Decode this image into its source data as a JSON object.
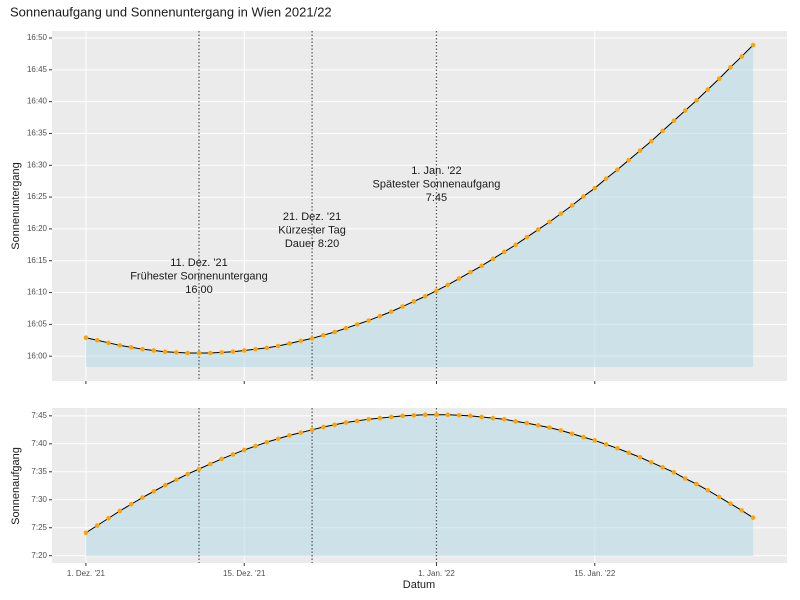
{
  "chart_data": [
    {
      "type": "line",
      "title": "Sonnenaufgang und Sonnenuntergang in Wien 2021/22",
      "ylabel": "Sonnenuntergang",
      "x": [
        "2021-12-01",
        "2021-12-02",
        "2021-12-03",
        "2021-12-04",
        "2021-12-05",
        "2021-12-06",
        "2021-12-07",
        "2021-12-08",
        "2021-12-09",
        "2021-12-10",
        "2021-12-11",
        "2021-12-12",
        "2021-12-13",
        "2021-12-14",
        "2021-12-15",
        "2021-12-16",
        "2021-12-17",
        "2021-12-18",
        "2021-12-19",
        "2021-12-20",
        "2021-12-21",
        "2021-12-22",
        "2021-12-23",
        "2021-12-24",
        "2021-12-25",
        "2021-12-26",
        "2021-12-27",
        "2021-12-28",
        "2021-12-29",
        "2021-12-30",
        "2021-12-31",
        "2022-01-01",
        "2022-01-02",
        "2022-01-03",
        "2022-01-04",
        "2022-01-05",
        "2022-01-06",
        "2022-01-07",
        "2022-01-08",
        "2022-01-09",
        "2022-01-10",
        "2022-01-11",
        "2022-01-12",
        "2022-01-13",
        "2022-01-14",
        "2022-01-15",
        "2022-01-16",
        "2022-01-17",
        "2022-01-18",
        "2022-01-19",
        "2022-01-20",
        "2022-01-21",
        "2022-01-22",
        "2022-01-23",
        "2022-01-24",
        "2022-01-25",
        "2022-01-26",
        "2022-01-27",
        "2022-01-28",
        "2022-01-29"
      ],
      "values": [
        962.9,
        962.5,
        962.1,
        961.7,
        961.4,
        961.1,
        960.9,
        960.7,
        960.6,
        960.5,
        960.5,
        960.5,
        960.6,
        960.7,
        960.9,
        961.1,
        961.3,
        961.6,
        962.0,
        962.4,
        962.8,
        963.3,
        963.8,
        964.4,
        965.0,
        965.6,
        966.3,
        967.0,
        967.8,
        968.6,
        969.4,
        970.3,
        971.2,
        972.2,
        973.2,
        974.2,
        975.3,
        976.4,
        977.5,
        978.7,
        979.9,
        981.1,
        982.4,
        983.7,
        985.1,
        986.4,
        987.9,
        989.3,
        990.8,
        992.3,
        993.8,
        995.4,
        997.0,
        998.6,
        1000.2,
        1001.9,
        1003.6,
        1005.4,
        1007.1,
        1008.9
      ],
      "line_color": "#000000",
      "point_color": "#FFA500",
      "area_color": "#add8e6",
      "ylim": [
        956.1,
        1011.1
      ],
      "yticks": [
        {
          "value": 960,
          "label": "16:00"
        },
        {
          "value": 965,
          "label": "16:05"
        },
        {
          "value": 970,
          "label": "16:10"
        },
        {
          "value": 975,
          "label": "16:15"
        },
        {
          "value": 980,
          "label": "16:20"
        },
        {
          "value": 985,
          "label": "16:25"
        },
        {
          "value": 990,
          "label": "16:30"
        },
        {
          "value": 995,
          "label": "16:35"
        },
        {
          "value": 1000,
          "label": "16:40"
        },
        {
          "value": 1005,
          "label": "16:45"
        },
        {
          "value": 1010,
          "label": "16:50"
        }
      ],
      "annotations": [
        {
          "x": "2021-12-11",
          "lines": [
            "11. Dez. '21",
            "Frühester Sonnenuntergang",
            "16:00"
          ]
        },
        {
          "x": "2021-12-21",
          "lines": [
            "21. Dez. '21",
            "Kürzester Tag",
            "Dauer 8:20"
          ]
        },
        {
          "x": "2022-01-01",
          "lines": [
            "1. Jan. '22",
            "Spätester Sonnenaufgang",
            "7:45"
          ]
        }
      ],
      "grid": true
    },
    {
      "type": "line",
      "ylabel": "Sonnenaufgang",
      "xlabel": "Datum",
      "values": [
        444.1,
        445.4,
        446.7,
        448.0,
        449.2,
        450.4,
        451.5,
        452.6,
        453.6,
        454.6,
        455.5,
        456.4,
        457.3,
        458.1,
        458.9,
        459.6,
        460.3,
        460.9,
        461.5,
        462.0,
        462.5,
        463.0,
        463.4,
        463.8,
        464.1,
        464.4,
        464.6,
        464.8,
        465.0,
        465.1,
        465.2,
        465.2,
        465.2,
        465.1,
        465.0,
        464.8,
        464.6,
        464.4,
        464.0,
        463.7,
        463.3,
        462.9,
        462.4,
        461.8,
        461.2,
        460.6,
        459.9,
        459.2,
        458.4,
        457.6,
        456.7,
        455.8,
        454.9,
        453.8,
        452.8,
        451.7,
        450.5,
        449.3,
        448.1,
        446.8
      ],
      "line_color": "#000000",
      "point_color": "#FFA500",
      "area_color": "#add8e6",
      "xlim": [
        "2021-11-28",
        "2022-02-01"
      ],
      "xticks": [
        {
          "value": "2021-12-01",
          "label": "1. Dez. '21"
        },
        {
          "value": "2021-12-15",
          "label": "15. Dez. '21"
        },
        {
          "value": "2022-01-01",
          "label": "1. Jan. '22"
        },
        {
          "value": "2022-01-15",
          "label": "15. Jan. '22"
        }
      ],
      "ylim": [
        438.7,
        466.4
      ],
      "yticks": [
        {
          "value": 440,
          "label": "7:20"
        },
        {
          "value": 445,
          "label": "7:25"
        },
        {
          "value": 450,
          "label": "7:30"
        },
        {
          "value": 455,
          "label": "7:35"
        },
        {
          "value": 460,
          "label": "7:40"
        },
        {
          "value": 465,
          "label": "7:45"
        }
      ],
      "grid": true
    }
  ]
}
